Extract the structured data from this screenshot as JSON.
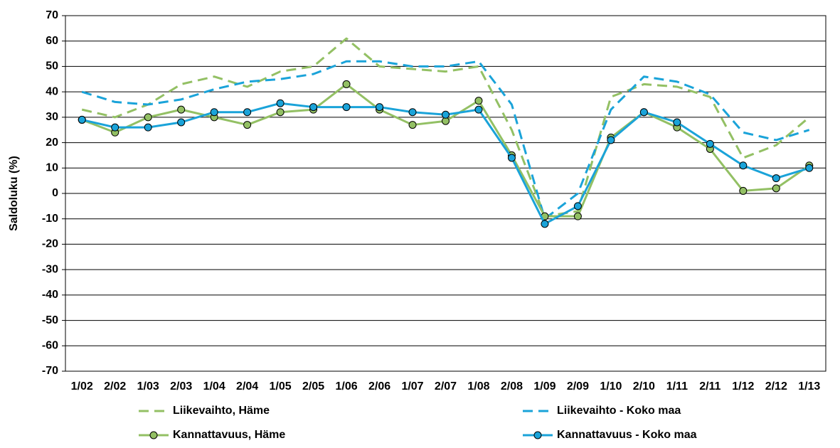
{
  "chart_data": {
    "type": "line",
    "y_label": "Saldoluku (%)",
    "categories": [
      "1/02",
      "2/02",
      "1/03",
      "2/03",
      "1/04",
      "2/04",
      "1/05",
      "2/05",
      "1/06",
      "2/06",
      "1/07",
      "2/07",
      "1/08",
      "2/08",
      "1/09",
      "2/09",
      "1/10",
      "2/10",
      "1/11",
      "2/11",
      "1/12",
      "2/12",
      "1/13"
    ],
    "series": [
      {
        "name": "Liikevaihto, Häme",
        "color": "#93c064",
        "dashed": true,
        "markers": false,
        "values": [
          33,
          30,
          35,
          43,
          46,
          42,
          48,
          50,
          61,
          50,
          49,
          48,
          50,
          25,
          -9,
          -7,
          38,
          43,
          42,
          38,
          14,
          19,
          30
        ]
      },
      {
        "name": "Liikevaihto - Koko maa",
        "color": "#1aa3d9",
        "dashed": true,
        "markers": false,
        "values": [
          40,
          36,
          35,
          37,
          41,
          44,
          45,
          47,
          52,
          52,
          50,
          50,
          52,
          35,
          -10,
          0,
          33,
          46,
          44,
          39,
          24,
          21,
          25
        ]
      },
      {
        "name": "Kannattavuus, Häme",
        "color": "#93c064",
        "dashed": false,
        "markers": true,
        "values": [
          29,
          24,
          30,
          33,
          30,
          27,
          32,
          33,
          43,
          33,
          27,
          28.5,
          36.5,
          15,
          -9,
          -9,
          22,
          32,
          26,
          17.5,
          1,
          2,
          11
        ]
      },
      {
        "name": "Kannattavuus - Koko maa",
        "color": "#1aa3d9",
        "dashed": false,
        "markers": true,
        "values": [
          29,
          26,
          26,
          28,
          32,
          32,
          35.5,
          34,
          34,
          34,
          32,
          31,
          33,
          14,
          -12,
          -5,
          21,
          32,
          28,
          19.5,
          11,
          6,
          10
        ]
      }
    ],
    "ylim": [
      -70,
      70
    ],
    "yticks": [
      -70,
      -60,
      -50,
      -40,
      -30,
      -20,
      -10,
      0,
      10,
      20,
      30,
      40,
      50,
      60,
      70
    ],
    "grid": true,
    "legend": "bottom"
  }
}
